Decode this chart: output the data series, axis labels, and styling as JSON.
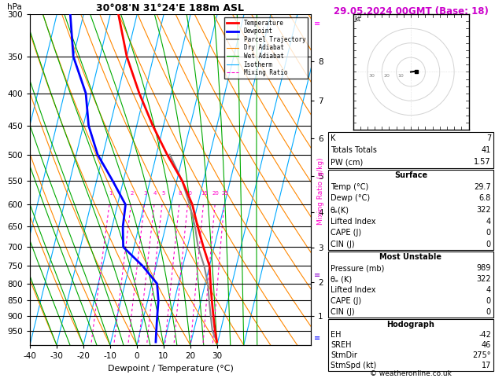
{
  "title_left": "30°08'N 31°24'E 188m ASL",
  "title_right": "29.05.2024 00GMT (Base: 18)",
  "xlabel": "Dewpoint / Temperature (°C)",
  "pressure_levels": [
    300,
    350,
    400,
    450,
    500,
    550,
    600,
    650,
    700,
    750,
    800,
    850,
    900,
    950
  ],
  "temp_ticks": [
    -40,
    -30,
    -20,
    -10,
    0,
    10,
    20,
    30
  ],
  "pmin": 300,
  "pmax": 1000,
  "temp_min": -40,
  "temp_max": 35,
  "skew_factor": 25.0,
  "temperature_profile": {
    "pressure": [
      300,
      350,
      400,
      450,
      500,
      550,
      600,
      650,
      700,
      750,
      800,
      850,
      900,
      950,
      989
    ],
    "temp": [
      -37,
      -30,
      -22,
      -14,
      -6,
      2,
      8,
      12,
      16,
      20,
      22,
      24,
      26,
      28,
      29.7
    ]
  },
  "dewpoint_profile": {
    "pressure": [
      300,
      350,
      400,
      450,
      500,
      550,
      600,
      650,
      700,
      750,
      800,
      850,
      900,
      950,
      989
    ],
    "temp": [
      -55,
      -50,
      -42,
      -38,
      -32,
      -24,
      -17,
      -16,
      -14,
      -5,
      2,
      4,
      5,
      6,
      6.8
    ]
  },
  "parcel_trajectory": {
    "pressure": [
      500,
      550,
      600,
      650,
      700,
      750,
      800,
      850,
      900,
      950,
      989
    ],
    "temp": [
      -5,
      2,
      7,
      11,
      14,
      18,
      21,
      23,
      25,
      27,
      29.7
    ]
  },
  "legend_items": [
    {
      "label": "Temperature",
      "color": "#ff0000",
      "lw": 2.0,
      "ls": "-"
    },
    {
      "label": "Dewpoint",
      "color": "#0000ff",
      "lw": 2.0,
      "ls": "-"
    },
    {
      "label": "Parcel Trajectory",
      "color": "#888888",
      "lw": 1.5,
      "ls": "-"
    },
    {
      "label": "Dry Adiabat",
      "color": "#ff8800",
      "lw": 0.8,
      "ls": "-"
    },
    {
      "label": "Wet Adiabat",
      "color": "#00aa00",
      "lw": 0.8,
      "ls": "-"
    },
    {
      "label": "Isotherm",
      "color": "#00aaff",
      "lw": 0.8,
      "ls": "-"
    },
    {
      "label": "Mixing Ratio",
      "color": "#ff00cc",
      "lw": 0.8,
      "ls": "--"
    }
  ],
  "mixing_ratios": [
    1,
    2,
    3,
    4,
    5,
    8,
    10,
    15,
    20,
    25
  ],
  "km_labels": [
    1,
    2,
    3,
    4,
    5,
    6,
    7,
    8
  ],
  "km_pressures": [
    899,
    795,
    701,
    616,
    541,
    472,
    411,
    356
  ],
  "stats": {
    "k_index": "7",
    "totals_totals": "41",
    "pw_cm": "1.57",
    "sfc_temp": "29.7",
    "sfc_dewp": "6.8",
    "sfc_theta_e": "322",
    "sfc_li": "4",
    "sfc_cape": "0",
    "sfc_cin": "0",
    "mu_press": "989",
    "mu_theta_e": "322",
    "mu_li": "4",
    "mu_cape": "0",
    "mu_cin": "0",
    "hodo_eh": "-42",
    "hodo_sreh": "46",
    "hodo_stmdir": "275°",
    "hodo_stmspd": "17"
  },
  "isotherm_color": "#00aaff",
  "dry_adiabat_color": "#ff8800",
  "wet_adiabat_color": "#00aa00",
  "mixing_ratio_color": "#ff00cc",
  "temp_color": "#ff0000",
  "dewpoint_color": "#0000ff",
  "parcel_color": "#888888",
  "title_color_right": "#cc00cc",
  "bg_color": "#ffffff"
}
